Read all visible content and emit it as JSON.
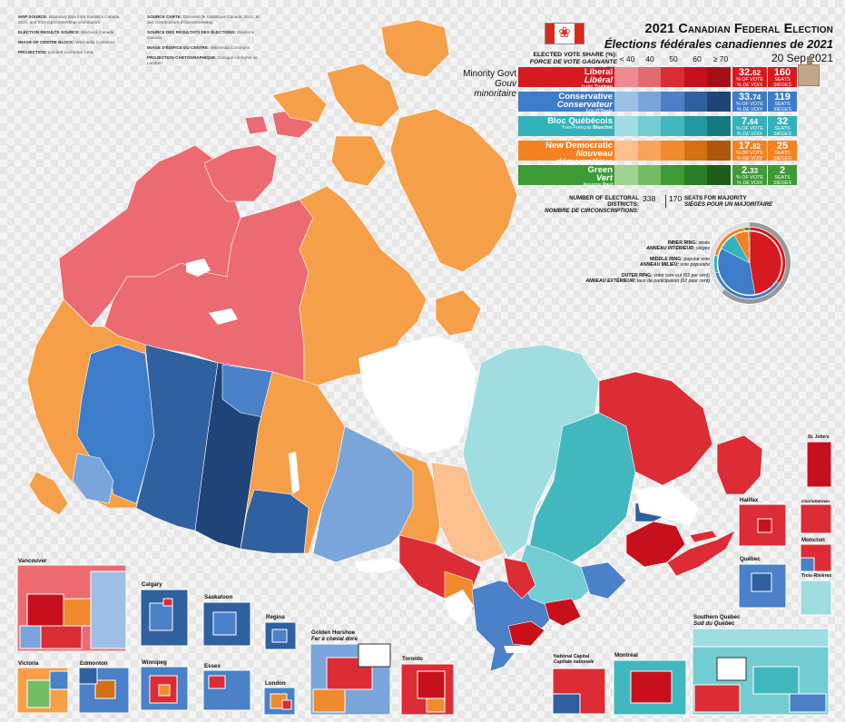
{
  "credits": {
    "map_source_label": "MAP SOURCE:",
    "map_source_text": "Boundary data from Statistics Canada, 2021, and from OpenStreetMap contributors.",
    "results_source_label": "ELECTION RESULTS SOURCE:",
    "results_source_text": "Elections Canada",
    "image_centre_label": "IMAGE OF CENTRE BLOCK:",
    "image_centre_text": "Wikimedia Commons",
    "projection_label": "PROJECTION:",
    "projection_text": "Lambert conformal conic",
    "source_carte_label": "SOURCE CARTE:",
    "source_carte_text": "Données de Statistique Canada, 2021, et des contributeurs d'OpenStreetMap.",
    "source_resultats_label": "SOURCE DES RÉSULTATS DES ÉLECTIONS:",
    "source_resultats_text": "Élections Canada",
    "image_edifice_label": "IMAGE D'ÉDIFICE DU CENTRE:",
    "image_edifice_text": "Wikimedia Commons",
    "projection_fr_label": "PROJECTION CARTOGRAPHIQUE:",
    "projection_fr_text": "Conique conforme de Lambert"
  },
  "header": {
    "title_en": "2021 Canadian Federal Election",
    "title_fr_prefix": "Élections fédérales canadiennes de ",
    "title_fr_year": "2021",
    "date": "20 Sep 2021"
  },
  "legend": {
    "share_label_en": "ELECTED VOTE SHARE (%):",
    "share_label_fr": "FORCE DE VOTE GAGNANTE (%):",
    "bins": [
      "< 40",
      "40",
      "50",
      "60",
      "≥ 70"
    ],
    "minority_en": "Minority Govt",
    "minority_fr": "Gouv minoritaire",
    "pct_label_en": "% OF VOTE",
    "pct_label_fr": "% DE VOIX",
    "seats_label_en": "SEATS",
    "seats_label_fr": "SIÈGES"
  },
  "parties": [
    {
      "en": "Liberal",
      "fr": "Libéral",
      "leader_first": "Justin",
      "leader_last": "Trudeau",
      "pct_int": "32.",
      "pct_dec": "62",
      "seats": "160",
      "color": "#d71920",
      "ramp": [
        "#ee8a90",
        "#e46a72",
        "#dc2c36",
        "#c8101c",
        "#a60e16"
      ]
    },
    {
      "en": "Conservative",
      "fr": "Conservateur",
      "leader_first": "Erin",
      "leader_last": "O'Toole",
      "pct_int": "33.",
      "pct_dec": "74",
      "seats": "119",
      "color": "#3d7cc9",
      "ramp": [
        "#9ec0e6",
        "#7aa5da",
        "#4a81c8",
        "#2f609f",
        "#1f4477"
      ]
    },
    {
      "en": "Bloc Québécois",
      "fr": "",
      "leader_first": "Yves-François",
      "leader_last": "Blanchet",
      "pct_int": "7.",
      "pct_dec": "64",
      "seats": "32",
      "color": "#33b2bc",
      "ramp": [
        "#9fdde0",
        "#72cdd2",
        "#40b8be",
        "#229aa1",
        "#137a80"
      ]
    },
    {
      "en": "New Democratic",
      "fr": "Nouveau démocratique",
      "leader_first": "Jagmeet",
      "leader_last": "Singh",
      "pct_int": "17.",
      "pct_dec": "82",
      "seats": "25",
      "color": "#f58220",
      "ramp": [
        "#fbc08e",
        "#f7a35a",
        "#f08a2d",
        "#d46e12",
        "#b0560a"
      ]
    },
    {
      "en": "Green",
      "fr": "Vert",
      "leader_first": "Annamie",
      "leader_last": "Paul",
      "pct_int": "2.",
      "pct_dec": "33",
      "seats": "2",
      "color": "#3d9b35",
      "ramp": [
        "#9fd293",
        "#73bd64",
        "#3d9b35",
        "#2c7e26",
        "#1d5f19"
      ]
    }
  ],
  "districts": {
    "label_en": "NUMBER OF ELECTORAL DISTRICTS:",
    "label_fr": "NOMBRE DE CIRCONSCRIPTIONS:",
    "count": "338",
    "majority": "170",
    "majority_en": "SEATS FOR MAJORITY",
    "majority_fr": "SIÈGES POUR UN MAJORITAIRE"
  },
  "ring_legend": {
    "inner_en": "INNER RING:",
    "inner_en_text": "seats",
    "inner_fr": "ANNEAU INTÉRIEUR:",
    "inner_fr_text": "sièges",
    "middle_en": "MIDDLE RING:",
    "middle_en_text": "popular vote",
    "middle_fr": "ANNEAU MILIEU:",
    "middle_fr_text": "vote populaire",
    "outer_en": "OUTER RING:",
    "outer_en_text": "voter turn-out (62 per cent)",
    "outer_fr": "ANNEAU EXTÉRIEUR:",
    "outer_fr_text": "taux de participation (62 pour cent)",
    "turnout_pct": 62,
    "seats_values": [
      160,
      119,
      32,
      25,
      2
    ],
    "vote_values": [
      32.62,
      33.74,
      7.64,
      17.82,
      2.33
    ]
  },
  "insets": [
    {
      "id": "vancouver",
      "label": "Vancouver",
      "label_fr": ""
    },
    {
      "id": "victoria",
      "label": "Victoria",
      "label_fr": ""
    },
    {
      "id": "edmonton",
      "label": "Edmonton",
      "label_fr": ""
    },
    {
      "id": "calgary",
      "label": "Calgary",
      "label_fr": ""
    },
    {
      "id": "saskatoon",
      "label": "Saskatoon",
      "label_fr": ""
    },
    {
      "id": "regina",
      "label": "Regina",
      "label_fr": ""
    },
    {
      "id": "winnipeg",
      "label": "Winnipeg",
      "label_fr": ""
    },
    {
      "id": "essex",
      "label": "Essex",
      "label_fr": ""
    },
    {
      "id": "london",
      "label": "London",
      "label_fr": ""
    },
    {
      "id": "golden_horseshoe",
      "label": "Golden Horshoe",
      "label_fr": "Fer à cheval doré"
    },
    {
      "id": "toronto",
      "label": "Toronto",
      "label_fr": ""
    },
    {
      "id": "national_capital",
      "label": "National Capital",
      "label_fr": "Capitale nationale"
    },
    {
      "id": "montreal",
      "label": "Montréal",
      "label_fr": ""
    },
    {
      "id": "southern_quebec",
      "label": "Southern Québec",
      "label_fr": "Sud du Québec"
    },
    {
      "id": "quebec",
      "label": "Québec",
      "label_fr": ""
    },
    {
      "id": "halifax",
      "label": "Halifax",
      "label_fr": ""
    },
    {
      "id": "charlottetown",
      "label": "Charlottetown",
      "label_fr": ""
    },
    {
      "id": "moncton",
      "label": "Moncton",
      "label_fr": ""
    },
    {
      "id": "trois_rivieres",
      "label": "Trois-Rivières",
      "label_fr": ""
    },
    {
      "id": "st_johns",
      "label": "St. John's",
      "label_fr": ""
    }
  ]
}
